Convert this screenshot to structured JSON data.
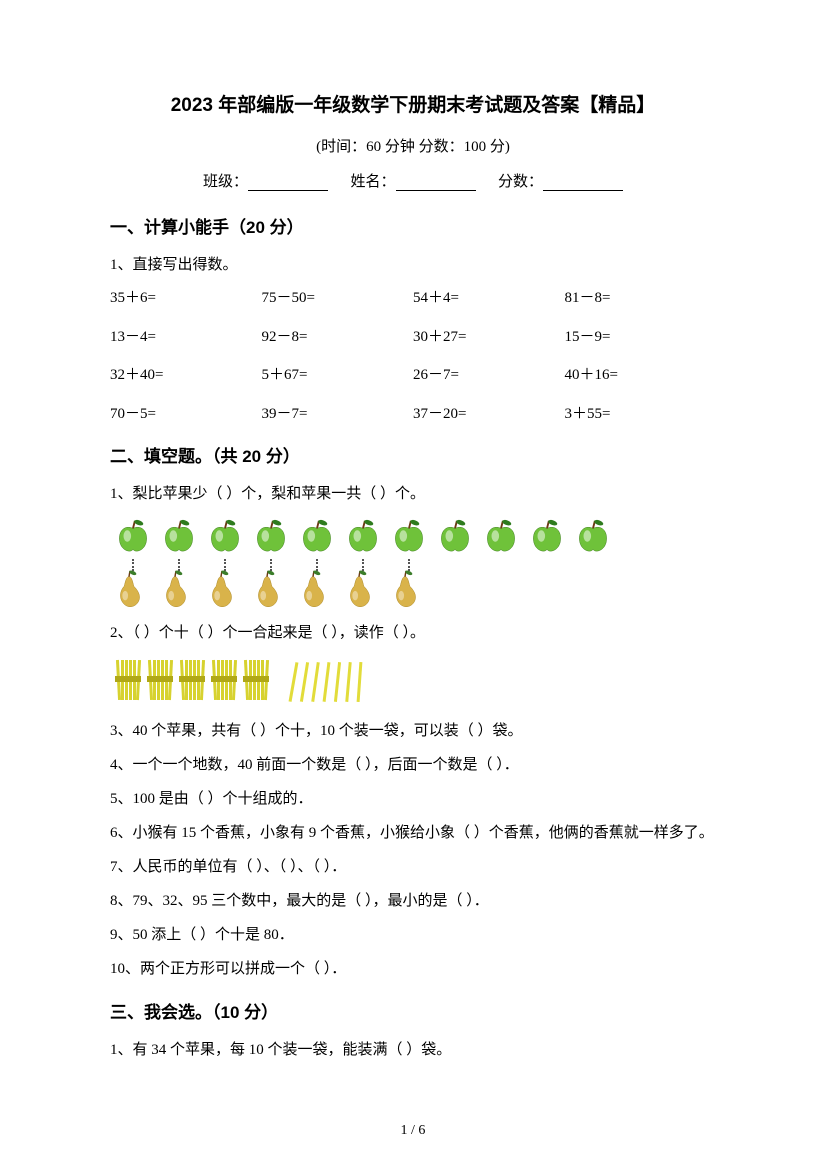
{
  "title": "2023 年部编版一年级数学下册期末考试题及答案【精品】",
  "subtitle": "(时间：60 分钟   分数：100 分)",
  "info": {
    "class_label": "班级：",
    "name_label": "姓名：",
    "score_label": "分数："
  },
  "section1": {
    "heading": "一、计算小能手（20 分）",
    "q1_label": "1、直接写出得数。",
    "calc": [
      [
        "35＋6=",
        "75－50=",
        "54＋4=",
        "81－8="
      ],
      [
        "13－4=",
        "92－8=",
        "30＋27=",
        "15－9="
      ],
      [
        "32＋40=",
        "5＋67=",
        "26－7=",
        "40＋16="
      ],
      [
        "70－5=",
        "39－7=",
        "37－20=",
        "3＋55="
      ]
    ]
  },
  "section2": {
    "heading": "二、填空题。（共 20 分）",
    "q1": "1、梨比苹果少（      ）个，梨和苹果一共（      ）个。",
    "apples_count": 11,
    "pears_count": 7,
    "q2": "2、（      ）个十（      ）个一合起来是（      ），读作（      ）。",
    "bundles_count": 5,
    "sticks_count": 7,
    "q3": "3、40 个苹果，共有（      ）个十，10 个装一袋，可以装（      ）袋。",
    "q4": "4、一个一个地数，40 前面一个数是（      ），后面一个数是（      ）．",
    "q5": "5、100 是由（      ）个十组成的．",
    "q6": "6、小猴有 15 个香蕉，小象有 9 个香蕉，小猴给小象（      ）个香蕉，他俩的香蕉就一样多了。",
    "q7": "7、人民币的单位有（      ）、（      ）、（      ）．",
    "q8": "8、79、32、95 三个数中，最大的是（      ），最小的是（      ）．",
    "q9": "9、50 添上（      ）个十是 80．",
    "q10": "10、两个正方形可以拼成一个（      ）．"
  },
  "section3": {
    "heading": "三、我会选。（10 分）",
    "q1": "1、有 34 个苹果，每 10 个装一袋，能装满（     ）袋。"
  },
  "page_number": "1 / 6",
  "colors": {
    "apple_body": "#6fc23a",
    "apple_leaf": "#2e7b1e",
    "apple_stem": "#6b3a12",
    "pear_body": "#d9b34a",
    "pear_leaf": "#3b7d2a",
    "bundle": "#d7d22f",
    "bundle_band": "#b0a817",
    "stick": "#e2dc3a"
  }
}
